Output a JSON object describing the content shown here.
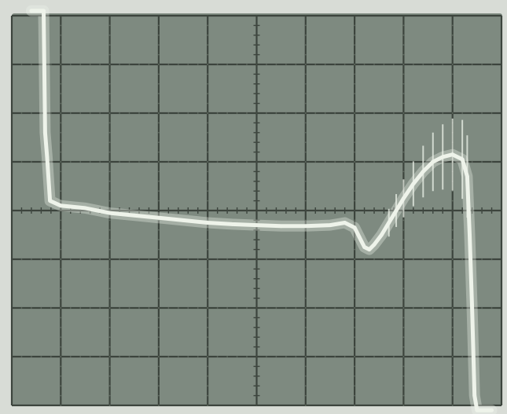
{
  "screen": {
    "background": "#7e8a80",
    "grid_color": "#3c443d",
    "trace_color": "#eef3ea",
    "tick_color": "#5f6a60",
    "frame_color": "#d8dcd6"
  },
  "chart_data": {
    "type": "line",
    "title": "",
    "xlabel": "",
    "ylabel": "",
    "grid": true,
    "legend": "none",
    "divisions": {
      "x": 10,
      "y": 8
    },
    "xlim": [
      0,
      10
    ],
    "ylim": [
      -4,
      4
    ],
    "series": [
      {
        "values": [
          [
            0.4,
            4.1
          ],
          [
            0.65,
            4.1
          ],
          [
            0.68,
            1.6
          ],
          [
            0.72,
            1.1
          ],
          [
            0.78,
            0.2
          ],
          [
            1.0,
            0.1
          ],
          [
            1.5,
            0.05
          ],
          [
            2.0,
            -0.05
          ],
          [
            2.5,
            -0.1
          ],
          [
            3.0,
            -0.15
          ],
          [
            3.5,
            -0.2
          ],
          [
            4.0,
            -0.25
          ],
          [
            4.5,
            -0.28
          ],
          [
            5.0,
            -0.3
          ],
          [
            5.5,
            -0.32
          ],
          [
            6.0,
            -0.32
          ],
          [
            6.5,
            -0.3
          ],
          [
            6.8,
            -0.25
          ],
          [
            7.0,
            -0.35
          ],
          [
            7.1,
            -0.55
          ],
          [
            7.2,
            -0.75
          ],
          [
            7.3,
            -0.8
          ],
          [
            7.4,
            -0.7
          ],
          [
            7.55,
            -0.5
          ],
          [
            7.7,
            -0.25
          ],
          [
            7.85,
            0.0
          ],
          [
            8.0,
            0.25
          ],
          [
            8.2,
            0.55
          ],
          [
            8.4,
            0.8
          ],
          [
            8.6,
            1.0
          ],
          [
            8.8,
            1.1
          ],
          [
            9.0,
            1.15
          ],
          [
            9.2,
            1.05
          ],
          [
            9.3,
            0.7
          ],
          [
            9.35,
            -0.5
          ],
          [
            9.4,
            -2.0
          ],
          [
            9.45,
            -3.8
          ],
          [
            9.5,
            -4.1
          ],
          [
            9.8,
            -4.1
          ]
        ]
      }
    ]
  }
}
